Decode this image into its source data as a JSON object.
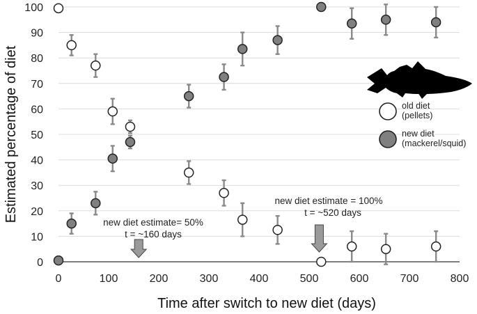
{
  "chart_data": {
    "type": "scatter",
    "xlabel": "Time after switch to new diet (days)",
    "ylabel": "Estimated percentage of diet",
    "xlim": [
      0,
      800
    ],
    "ylim": [
      0,
      100
    ],
    "xticks": [
      "0",
      "100",
      "200",
      "300",
      "400",
      "500",
      "600",
      "700",
      "800"
    ],
    "yticks": [
      "0",
      "10",
      "20",
      "30",
      "40",
      "50",
      "60",
      "70",
      "80",
      "90",
      "100"
    ],
    "grid": "horizontal",
    "series": [
      {
        "name": "old diet",
        "name_sub": "(pellets)",
        "color": "#ffffff",
        "points": [
          {
            "x": 0,
            "y": 99.5,
            "err": 0
          },
          {
            "x": 26,
            "y": 85,
            "err": 4
          },
          {
            "x": 74,
            "y": 77,
            "err": 4.5
          },
          {
            "x": 108,
            "y": 59,
            "err": 5
          },
          {
            "x": 143,
            "y": 53,
            "err": 2.5
          },
          {
            "x": 260,
            "y": 35,
            "err": 4.5
          },
          {
            "x": 330,
            "y": 27,
            "err": 5
          },
          {
            "x": 367,
            "y": 16.5,
            "err": 6.5
          },
          {
            "x": 437,
            "y": 12.5,
            "err": 5.5
          },
          {
            "x": 524,
            "y": 0,
            "err": 0
          },
          {
            "x": 585,
            "y": 6,
            "err": 6
          },
          {
            "x": 653,
            "y": 5,
            "err": 6
          },
          {
            "x": 753,
            "y": 6,
            "err": 6
          }
        ]
      },
      {
        "name": "new diet",
        "name_sub": "(mackerel/squid)",
        "color": "#808080",
        "points": [
          {
            "x": 0,
            "y": 0.5,
            "err": 0
          },
          {
            "x": 26,
            "y": 15,
            "err": 4
          },
          {
            "x": 74,
            "y": 23,
            "err": 4.5
          },
          {
            "x": 108,
            "y": 40.5,
            "err": 5
          },
          {
            "x": 143,
            "y": 47,
            "err": 2.5
          },
          {
            "x": 260,
            "y": 65,
            "err": 4.5
          },
          {
            "x": 330,
            "y": 72.5,
            "err": 5
          },
          {
            "x": 367,
            "y": 83.5,
            "err": 6.5
          },
          {
            "x": 437,
            "y": 87,
            "err": 5.5
          },
          {
            "x": 524,
            "y": 100,
            "err": 0
          },
          {
            "x": 585,
            "y": 93.5,
            "err": 6
          },
          {
            "x": 653,
            "y": 95,
            "err": 6
          },
          {
            "x": 753,
            "y": 94,
            "err": 6
          }
        ]
      }
    ],
    "annotations": [
      {
        "line1": "new diet estimate= 50%",
        "line2": "t = ~160 days",
        "x": 160
      },
      {
        "line1": "new diet estimate  = 100%",
        "line2": "t = ~520 days",
        "x": 520
      }
    ],
    "legend_position": "right",
    "icon": "fish-silhouette-icon"
  }
}
